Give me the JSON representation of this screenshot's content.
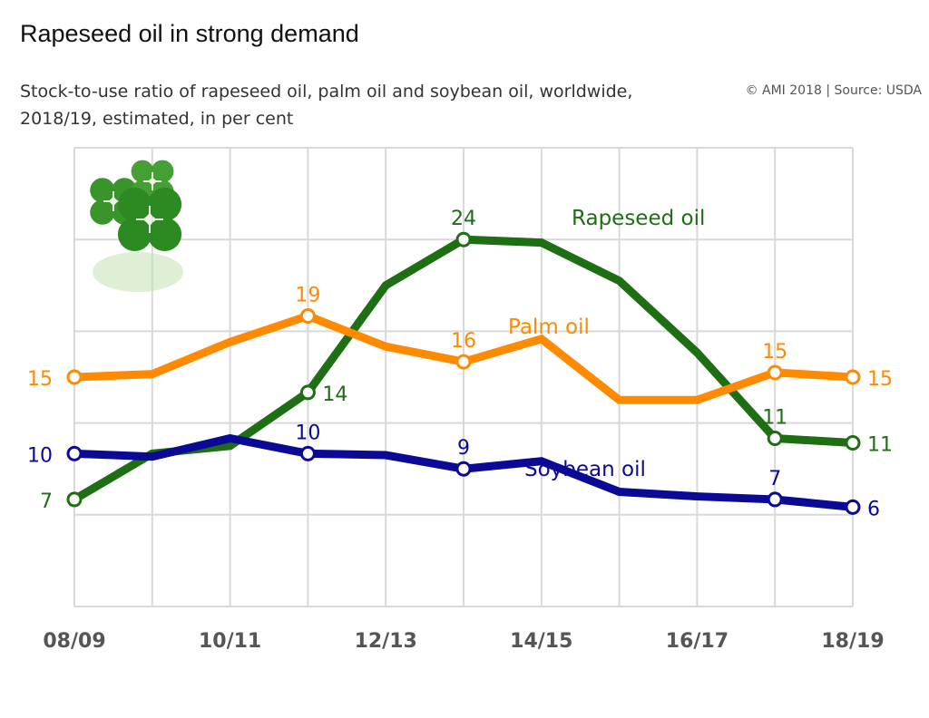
{
  "title": "Rapeseed oil in strong demand",
  "subtitle": "Stock-to-use ratio of rapeseed oil, palm oil and soybean oil, worldwide, 2018/19, estimated, in per cent",
  "source": "© AMI 2018 | Source: USDA",
  "icon": "clover-icon",
  "chart_data": {
    "type": "line",
    "x": [
      "08/09",
      "09/10",
      "10/11",
      "11/12",
      "12/13",
      "13/14",
      "14/15",
      "15/16",
      "16/17",
      "17/18",
      "18/19"
    ],
    "tick_labels": [
      "08/09",
      "10/11",
      "12/13",
      "14/15",
      "16/17",
      "18/19"
    ],
    "ylim": [
      0,
      30
    ],
    "grid": true,
    "series": [
      {
        "name": "Rapeseed oil",
        "color": "#1e6e14",
        "values": [
          7,
          10,
          10.5,
          14,
          21,
          24,
          23.8,
          21.3,
          16.6,
          11,
          10.7
        ],
        "labels": [
          "7",
          "",
          "",
          "14",
          "",
          "24",
          "",
          "",
          "",
          "11",
          "11"
        ]
      },
      {
        "name": "Palm oil",
        "color": "#ff8a00",
        "values": [
          15,
          15.2,
          17.3,
          19,
          17,
          16,
          17.5,
          13.5,
          13.5,
          15.3,
          15
        ],
        "labels": [
          "15",
          "",
          "",
          "19",
          "",
          "16",
          "",
          "",
          "",
          "15",
          "15"
        ]
      },
      {
        "name": "Soybean oil",
        "color": "#0a0a96",
        "values": [
          10,
          9.8,
          11,
          10,
          9.9,
          9,
          9.5,
          7.5,
          7.2,
          7,
          6.5
        ],
        "labels": [
          "10",
          "",
          "",
          "10",
          "",
          "9",
          "",
          "",
          "",
          "7",
          "6"
        ]
      }
    ]
  }
}
